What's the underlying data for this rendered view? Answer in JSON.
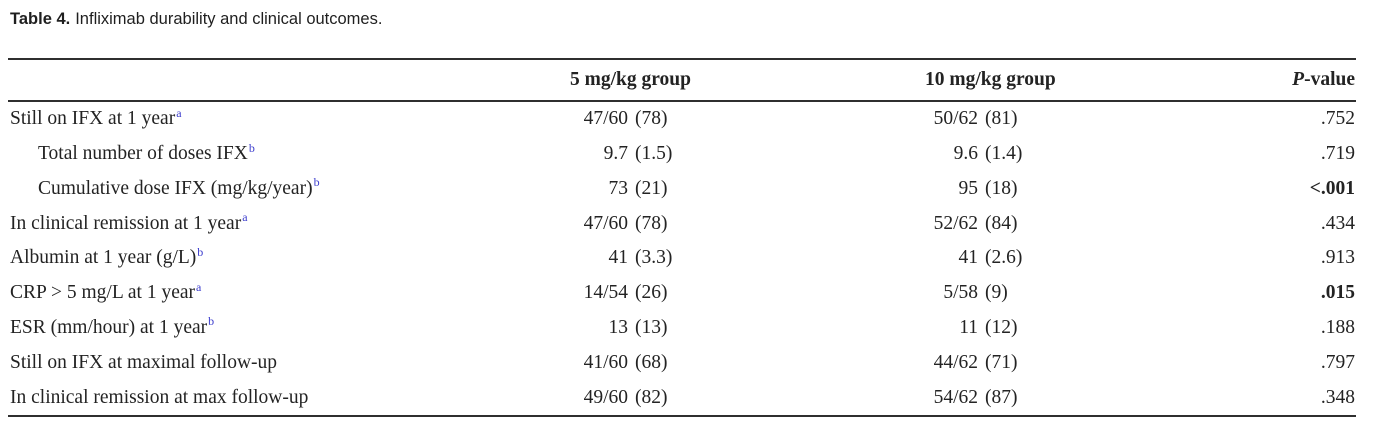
{
  "title": {
    "label": "Table 4.",
    "text": "Infliximab durability and clinical outcomes."
  },
  "colors": {
    "footnote_marker": "#3b3ccd",
    "text": "#232323",
    "rule": "#2f2f2f",
    "caption_text": "#1f1f1f"
  },
  "table": {
    "header": {
      "col5": "5 mg/kg group",
      "col10": "10 mg/kg group",
      "p_italic": "P",
      "p_rest": "-value"
    },
    "rows": [
      {
        "label": "Still on IFX at 1 year",
        "sup": "a",
        "indent": false,
        "v5": {
          "main": "47/60",
          "paren": "(78)"
        },
        "v10": {
          "main": "50/62",
          "paren": "(81)"
        },
        "p": ".752",
        "p_bold": false
      },
      {
        "label": "Total number of doses IFX",
        "sup": "b",
        "indent": true,
        "v5": {
          "main": "9.7",
          "paren": "(1.5)"
        },
        "v10": {
          "main": "9.6",
          "paren": "(1.4)"
        },
        "p": ".719",
        "p_bold": false
      },
      {
        "label": "Cumulative dose IFX (mg/kg/year)",
        "sup": "b",
        "indent": true,
        "v5": {
          "main": "73",
          "paren": "(21)"
        },
        "v10": {
          "main": "95",
          "paren": "(18)"
        },
        "p": "<.001",
        "p_bold": true
      },
      {
        "label": "In clinical remission at 1 year",
        "sup": "a",
        "indent": false,
        "v5": {
          "main": "47/60",
          "paren": "(78)"
        },
        "v10": {
          "main": "52/62",
          "paren": "(84)"
        },
        "p": ".434",
        "p_bold": false
      },
      {
        "label": "Albumin at 1 year (g/L)",
        "sup": "b",
        "indent": false,
        "v5": {
          "main": "41",
          "paren": "(3.3)"
        },
        "v10": {
          "main": "41",
          "paren": "(2.6)"
        },
        "p": ".913",
        "p_bold": false
      },
      {
        "label": "CRP > 5 mg/L at 1 year",
        "sup": "a",
        "indent": false,
        "v5": {
          "main": "14/54",
          "paren": "(26)"
        },
        "v10": {
          "main": "5/58",
          "paren": "(9)"
        },
        "p": ".015",
        "p_bold": true
      },
      {
        "label": "ESR (mm/hour) at 1 year",
        "sup": "b",
        "indent": false,
        "v5": {
          "main": "13",
          "paren": "(13)"
        },
        "v10": {
          "main": "11",
          "paren": "(12)"
        },
        "p": ".188",
        "p_bold": false
      },
      {
        "label": "Still on IFX at maximal follow-up",
        "sup": "",
        "indent": false,
        "v5": {
          "main": "41/60",
          "paren": "(68)"
        },
        "v10": {
          "main": "44/62",
          "paren": "(71)"
        },
        "p": ".797",
        "p_bold": false
      },
      {
        "label": "In clinical remission at max follow-up",
        "sup": "",
        "indent": false,
        "v5": {
          "main": "49/60",
          "paren": "(82)"
        },
        "v10": {
          "main": "54/62",
          "paren": "(87)"
        },
        "p": ".348",
        "p_bold": false
      }
    ]
  }
}
